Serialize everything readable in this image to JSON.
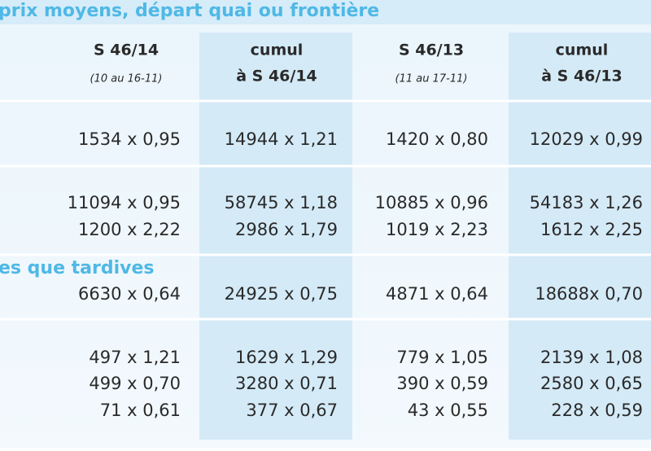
{
  "header": {
    "title": "prix moyens, départ quai ou frontière"
  },
  "table": {
    "columns": [
      {
        "label": "S 46/14",
        "sub": "(10 au 16-11)"
      },
      {
        "label": "cumul",
        "sub": "à S 46/14"
      },
      {
        "label": "S 46/13",
        "sub": "(11 au 17-11)"
      },
      {
        "label": "cumul",
        "sub": "à S 46/13"
      }
    ],
    "groups": [
      {
        "rows": [
          [
            "1534 x 0,95",
            "14944 x 1,21",
            "1420 x 0,80",
            "12029 x 0,99"
          ]
        ]
      },
      {
        "rows": [
          [
            "11094 x 0,95",
            "58745 x 1,18",
            "10885 x 0,96",
            "54183 x 1,26"
          ],
          [
            "1200 x 2,22",
            "2986 x 1,79",
            "1019 x 2,23",
            "1612 x 2,25"
          ]
        ]
      },
      {
        "label": "es que tardives",
        "rows": [
          [
            "6630 x 0,64",
            "24925 x 0,75",
            "4871 x 0,64",
            "18688x 0,70"
          ]
        ]
      },
      {
        "rows": [
          [
            "497 x 1,21",
            "1629 x 1,29",
            "779 x 1,05",
            "2139 x 1,08"
          ],
          [
            "499 x 0,70",
            "3280 x 0,71",
            "390 x 0,59",
            "2580 x 0,65"
          ],
          [
            "71 x 0,61",
            "377 x 0,67",
            "43 x 0,55",
            "228 x 0,59"
          ]
        ]
      }
    ]
  }
}
